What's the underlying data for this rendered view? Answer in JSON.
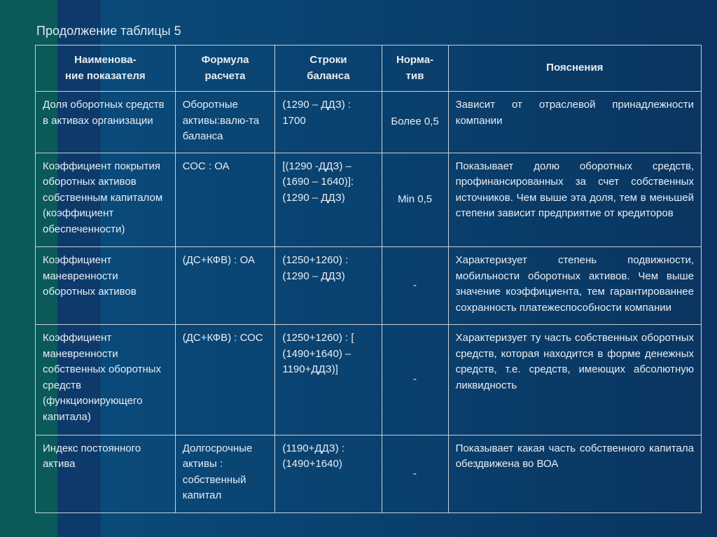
{
  "title": "Продолжение таблицы 5",
  "columns": [
    {
      "line1": "Наименова-",
      "line2": "ние показателя"
    },
    {
      "line1": "Формула",
      "line2": "расчета"
    },
    {
      "line1": "Строки",
      "line2": "баланса"
    },
    {
      "line1": "Норма-",
      "line2": "тив"
    },
    {
      "line1": "Пояснения",
      "line2": ""
    }
  ],
  "rows": [
    {
      "name": "Доля оборотных средств в активах организации",
      "formula": "Оборотные активы:валю-та баланса",
      "lines": "(1290 – ДДЗ) : 1700",
      "norm": "Более 0,5",
      "desc": "Зависит от отраслевой принадлежности компании"
    },
    {
      "name": "Коэффициент покрытия оборотных активов собственным капиталом (коэффициент обеспеченности)",
      "formula": "СОС : ОА",
      "lines": "[(1290 -ДДЗ) – (1690 – 1640)]: (1290 – ДДЗ)",
      "norm": "Min 0,5",
      "desc": "Показывает долю оборотных средств, профинансированных за счет собственных источников. Чем выше эта доля, тем в меньшей степени зависит предприятие от кредиторов"
    },
    {
      "name": "Коэффициент маневренности оборотных активов",
      "formula": "(ДС+КФВ) : ОА",
      "lines": "(1250+1260) : (1290 – ДДЗ)",
      "norm": "-",
      "desc": "Характеризует степень подвижности, мобильности оборотных активов. Чем выше значение коэффициента, тем гарантированнее сохранность платежеспособности компании"
    },
    {
      "name": "Коэффициент маневренности собственных оборотных средств (функционирующего капитала)",
      "formula": "(ДС+КФВ) : СОС",
      "lines": "(1250+1260) : [ (1490+1640) – 1190+ДДЗ)]",
      "norm": "-",
      "desc": "Характеризует ту часть собственных оборотных средств, которая находится в форме денежных средств, т.е. средств, имеющих абсолютную ликвидность"
    },
    {
      "name": "Индекс постоянного актива",
      "formula": "Долгосрочные активы : собственный капитал",
      "lines": "(1190+ДДЗ) : (1490+1640)",
      "norm": "-",
      "desc": "Показывает какая часть собственного капитала обездвижена во ВОА"
    }
  ]
}
